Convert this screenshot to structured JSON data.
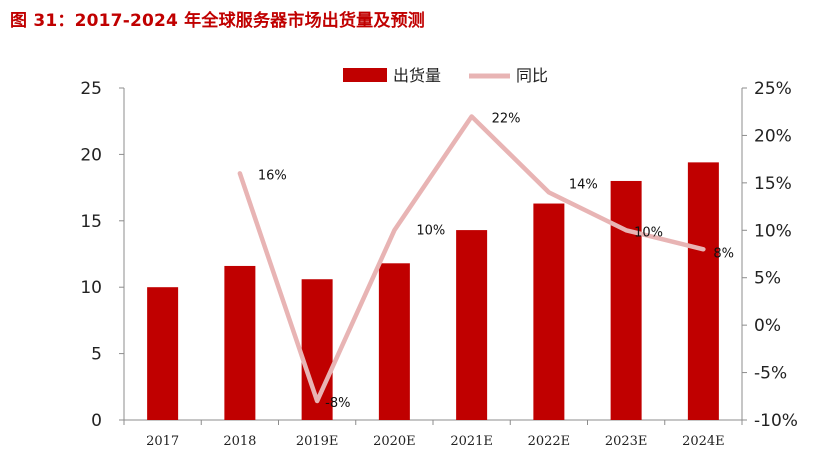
{
  "title": "图 31：2017-2024 年全球服务器市场出货量及预测",
  "colors": {
    "bar": "#c00000",
    "line": "#e8b4b4",
    "title": "#c00000",
    "axis": "#8c8c8c"
  },
  "chart_data": {
    "type": "bar+line",
    "categories": [
      "2017",
      "2018",
      "2019E",
      "2020E",
      "2021E",
      "2022E",
      "2023E",
      "2024E"
    ],
    "series": [
      {
        "name": "出货量",
        "type": "bar",
        "axis": "left",
        "values": [
          10.0,
          11.6,
          10.6,
          11.8,
          14.3,
          16.3,
          18.0,
          19.4
        ]
      },
      {
        "name": "同比",
        "type": "line",
        "axis": "right",
        "values": [
          null,
          16,
          -8,
          10,
          22,
          14,
          10,
          8
        ],
        "labels": [
          "",
          "16%",
          "-8%",
          "10%",
          "22%",
          "14%",
          "10%",
          "8%"
        ]
      }
    ],
    "ylim_left": [
      0,
      25
    ],
    "yticks_left": [
      "0",
      "5",
      "10",
      "15",
      "20",
      "25"
    ],
    "ylim_right": [
      -10,
      25
    ],
    "yticks_right": [
      "-10%",
      "-5%",
      "0%",
      "5%",
      "10%",
      "15%",
      "20%",
      "25%"
    ],
    "legend_position": "top-center",
    "grid": false
  }
}
